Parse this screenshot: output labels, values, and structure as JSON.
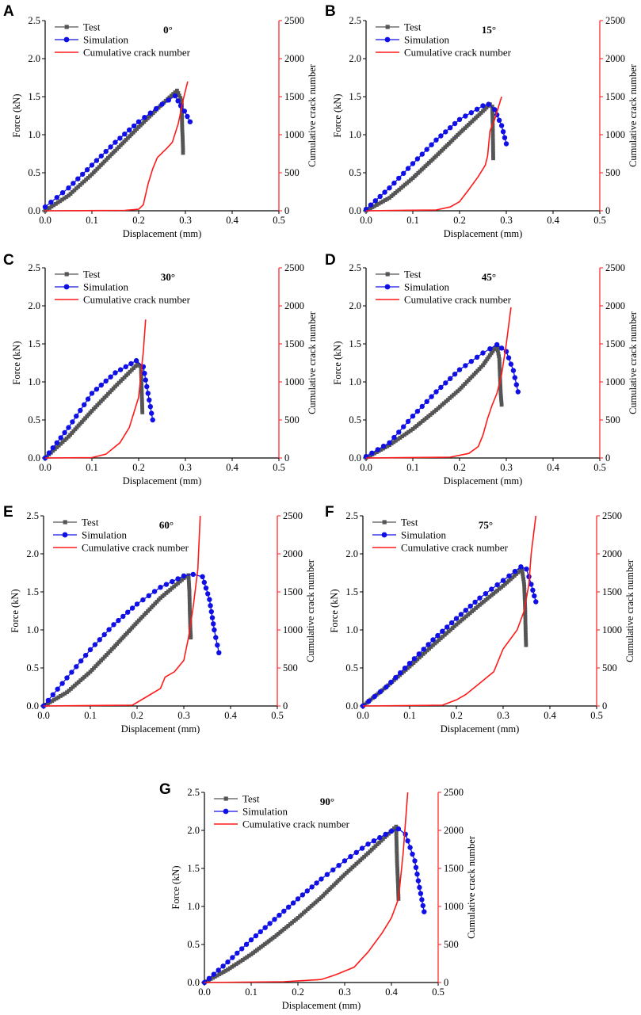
{
  "figure": {
    "colors": {
      "test": "#555555",
      "simulation": "#1010e6",
      "crack": "#ff1a1a",
      "axis": "#000000"
    },
    "legend": [
      "Test",
      "Simulation",
      "Cumulative crack number"
    ],
    "xlabel": "Displacement (mm)",
    "ylabel": "Force (kN)",
    "y2label": "Cumulative crack number",
    "x_ticks": [
      "0.0",
      "0.1",
      "0.2",
      "0.3",
      "0.4",
      "0.5"
    ],
    "y_ticks": [
      "0.0",
      "0.5",
      "1.0",
      "1.5",
      "2.0",
      "2.5"
    ],
    "y2_ticks": [
      "0",
      "500",
      "1000",
      "1500",
      "2000",
      "2500"
    ]
  },
  "chart_data": [
    {
      "type": "line",
      "letter": "A",
      "angle": "0°",
      "xlabel": "Displacement (mm)",
      "ylabel": "Force (kN)",
      "y2label": "Cumulative crack number",
      "xlim": [
        0,
        0.5
      ],
      "ylim": [
        0,
        2.5
      ],
      "y2lim": [
        0,
        2500
      ],
      "series": [
        {
          "name": "Test",
          "axis": "left",
          "x": [
            0,
            0.05,
            0.1,
            0.15,
            0.2,
            0.25,
            0.282,
            0.292,
            0.293,
            0.294,
            0.295
          ],
          "y": [
            0,
            0.2,
            0.48,
            0.79,
            1.1,
            1.4,
            1.58,
            1.45,
            1.1,
            0.97,
            0.76
          ]
        },
        {
          "name": "Simulation",
          "axis": "left",
          "x": [
            0,
            0.05,
            0.1,
            0.15,
            0.2,
            0.25,
            0.278,
            0.29,
            0.298,
            0.31
          ],
          "y": [
            0.05,
            0.3,
            0.6,
            0.9,
            1.17,
            1.4,
            1.51,
            1.38,
            1.31,
            1.17
          ]
        },
        {
          "name": "Cumulative crack number",
          "axis": "right",
          "x": [
            0,
            0.17,
            0.2,
            0.21,
            0.22,
            0.23,
            0.24,
            0.26,
            0.272,
            0.285,
            0.295,
            0.305
          ],
          "y": [
            0,
            5,
            20,
            80,
            350,
            550,
            700,
            820,
            900,
            1150,
            1450,
            1700
          ]
        }
      ]
    },
    {
      "type": "line",
      "letter": "B",
      "angle": "15°",
      "xlabel": "Displacement (mm)",
      "ylabel": "Force (kN)",
      "y2label": "Cumulative crack number",
      "xlim": [
        0,
        0.5
      ],
      "ylim": [
        0,
        2.5
      ],
      "y2lim": [
        0,
        2500
      ],
      "series": [
        {
          "name": "Test",
          "axis": "left",
          "x": [
            0,
            0.05,
            0.1,
            0.15,
            0.2,
            0.25,
            0.265,
            0.27,
            0.271,
            0.272
          ],
          "y": [
            0,
            0.17,
            0.43,
            0.72,
            1.02,
            1.31,
            1.4,
            1.37,
            1.12,
            0.69
          ]
        },
        {
          "name": "Simulation",
          "axis": "left",
          "x": [
            0,
            0.05,
            0.1,
            0.15,
            0.2,
            0.25,
            0.262,
            0.275,
            0.29,
            0.3
          ],
          "y": [
            0.02,
            0.3,
            0.62,
            0.93,
            1.2,
            1.38,
            1.4,
            1.33,
            1.12,
            0.88
          ]
        },
        {
          "name": "Cumulative crack number",
          "axis": "right",
          "x": [
            0,
            0.15,
            0.18,
            0.2,
            0.22,
            0.24,
            0.255,
            0.26,
            0.265,
            0.275,
            0.29
          ],
          "y": [
            0,
            10,
            50,
            120,
            280,
            450,
            600,
            720,
            1050,
            1200,
            1500
          ]
        }
      ]
    },
    {
      "type": "line",
      "letter": "C",
      "angle": "30°",
      "xlabel": "Displacement (mm)",
      "ylabel": "Force (kN)",
      "y2label": "Cumulative crack number",
      "xlim": [
        0,
        0.5
      ],
      "ylim": [
        0,
        2.5
      ],
      "y2lim": [
        0,
        2500
      ],
      "series": [
        {
          "name": "Test",
          "axis": "left",
          "x": [
            0,
            0.05,
            0.1,
            0.15,
            0.197,
            0.205,
            0.206,
            0.207,
            0.208
          ],
          "y": [
            0,
            0.28,
            0.62,
            0.94,
            1.23,
            1.2,
            1.0,
            0.8,
            0.6
          ]
        },
        {
          "name": "Simulation",
          "axis": "left",
          "x": [
            0,
            0.05,
            0.1,
            0.15,
            0.195,
            0.21,
            0.22,
            0.23
          ],
          "y": [
            0,
            0.4,
            0.85,
            1.12,
            1.28,
            1.2,
            0.85,
            0.5
          ]
        },
        {
          "name": "Cumulative crack number",
          "axis": "right",
          "x": [
            0,
            0.1,
            0.13,
            0.16,
            0.18,
            0.19,
            0.2,
            0.205,
            0.21,
            0.215
          ],
          "y": [
            0,
            5,
            50,
            200,
            400,
            600,
            800,
            1100,
            1400,
            1820
          ]
        }
      ]
    },
    {
      "type": "line",
      "letter": "D",
      "angle": "45°",
      "xlabel": "Displacement (mm)",
      "ylabel": "Force (kN)",
      "y2label": "Cumulative crack number",
      "xlim": [
        0,
        0.5
      ],
      "ylim": [
        0,
        2.5
      ],
      "y2lim": [
        0,
        2500
      ],
      "series": [
        {
          "name": "Test",
          "axis": "left",
          "x": [
            0,
            0.05,
            0.1,
            0.15,
            0.2,
            0.25,
            0.28,
            0.285,
            0.287,
            0.288,
            0.29
          ],
          "y": [
            0,
            0.17,
            0.38,
            0.63,
            0.9,
            1.22,
            1.48,
            1.3,
            1.0,
            0.85,
            0.7
          ]
        },
        {
          "name": "Simulation",
          "axis": "left",
          "x": [
            0,
            0.05,
            0.1,
            0.15,
            0.2,
            0.25,
            0.28,
            0.3,
            0.315,
            0.325
          ],
          "y": [
            0.02,
            0.2,
            0.55,
            0.87,
            1.16,
            1.38,
            1.49,
            1.4,
            1.15,
            0.87
          ]
        },
        {
          "name": "Cumulative crack number",
          "axis": "right",
          "x": [
            0,
            0.18,
            0.22,
            0.24,
            0.25,
            0.26,
            0.27,
            0.28,
            0.29,
            0.3,
            0.31
          ],
          "y": [
            0,
            10,
            60,
            150,
            300,
            520,
            700,
            850,
            1100,
            1500,
            1980
          ]
        }
      ]
    },
    {
      "type": "line",
      "letter": "E",
      "angle": "60°",
      "xlabel": "Displacement (mm)",
      "ylabel": "Force (kN)",
      "y2label": "Cumulative crack number",
      "xlim": [
        0,
        0.5
      ],
      "ylim": [
        0,
        2.5
      ],
      "y2lim": [
        0,
        2500
      ],
      "series": [
        {
          "name": "Test",
          "axis": "left",
          "x": [
            0,
            0.05,
            0.1,
            0.15,
            0.2,
            0.25,
            0.3,
            0.31,
            0.312,
            0.313,
            0.314,
            0.315
          ],
          "y": [
            0,
            0.18,
            0.45,
            0.77,
            1.1,
            1.42,
            1.68,
            1.72,
            1.5,
            1.2,
            1.0,
            0.9
          ]
        },
        {
          "name": "Simulation",
          "axis": "left",
          "x": [
            0,
            0.05,
            0.1,
            0.15,
            0.2,
            0.25,
            0.3,
            0.32,
            0.34,
            0.355,
            0.365,
            0.375
          ],
          "y": [
            0,
            0.37,
            0.74,
            1.07,
            1.34,
            1.56,
            1.71,
            1.73,
            1.7,
            1.4,
            1.0,
            0.7
          ]
        },
        {
          "name": "Cumulative crack number",
          "axis": "right",
          "x": [
            0,
            0.19,
            0.22,
            0.25,
            0.26,
            0.28,
            0.3,
            0.31,
            0.32,
            0.33,
            0.335
          ],
          "y": [
            0,
            10,
            120,
            230,
            380,
            450,
            600,
            900,
            1300,
            1800,
            2500
          ]
        }
      ]
    },
    {
      "type": "line",
      "letter": "F",
      "angle": "75°",
      "xlabel": "Displacement (mm)",
      "ylabel": "Force (kN)",
      "y2label": "Cumulative crack number",
      "xlim": [
        0,
        0.5
      ],
      "ylim": [
        0,
        2.5
      ],
      "y2lim": [
        0,
        2500
      ],
      "series": [
        {
          "name": "Test",
          "axis": "left",
          "x": [
            0,
            0.05,
            0.1,
            0.15,
            0.2,
            0.25,
            0.3,
            0.34,
            0.345,
            0.347,
            0.348,
            0.349
          ],
          "y": [
            0,
            0.25,
            0.52,
            0.8,
            1.07,
            1.33,
            1.58,
            1.8,
            1.6,
            1.3,
            1.0,
            0.8
          ]
        },
        {
          "name": "Simulation",
          "axis": "left",
          "x": [
            0,
            0.05,
            0.1,
            0.15,
            0.2,
            0.25,
            0.3,
            0.338,
            0.35,
            0.36,
            0.37
          ],
          "y": [
            0,
            0.25,
            0.56,
            0.87,
            1.15,
            1.42,
            1.65,
            1.83,
            1.8,
            1.6,
            1.37
          ]
        },
        {
          "name": "Cumulative crack number",
          "axis": "right",
          "x": [
            0,
            0.17,
            0.2,
            0.22,
            0.25,
            0.28,
            0.3,
            0.33,
            0.345,
            0.355,
            0.36,
            0.37
          ],
          "y": [
            0,
            10,
            80,
            150,
            300,
            450,
            750,
            1000,
            1250,
            1600,
            2000,
            2500
          ]
        }
      ]
    },
    {
      "type": "line",
      "letter": "G",
      "angle": "90°",
      "xlabel": "Displacement (mm)",
      "ylabel": "Force (kN)",
      "y2label": "Cumulative crack number",
      "xlim": [
        0,
        0.5
      ],
      "ylim": [
        0,
        2.5
      ],
      "y2lim": [
        0,
        2500
      ],
      "series": [
        {
          "name": "Test",
          "axis": "left",
          "x": [
            0,
            0.05,
            0.1,
            0.15,
            0.2,
            0.25,
            0.3,
            0.35,
            0.41,
            0.412,
            0.414,
            0.415
          ],
          "y": [
            0,
            0.17,
            0.37,
            0.6,
            0.85,
            1.12,
            1.42,
            1.7,
            2.05,
            1.6,
            1.3,
            1.1
          ]
        },
        {
          "name": "Simulation",
          "axis": "left",
          "x": [
            0,
            0.05,
            0.1,
            0.15,
            0.2,
            0.25,
            0.3,
            0.35,
            0.4,
            0.415,
            0.43,
            0.45,
            0.46,
            0.47
          ],
          "y": [
            0,
            0.27,
            0.56,
            0.83,
            1.1,
            1.36,
            1.6,
            1.82,
            1.99,
            2.02,
            1.95,
            1.6,
            1.25,
            0.93
          ]
        },
        {
          "name": "Cumulative crack number",
          "axis": "right",
          "x": [
            0,
            0.17,
            0.25,
            0.28,
            0.32,
            0.35,
            0.38,
            0.4,
            0.415,
            0.425,
            0.435
          ],
          "y": [
            0,
            10,
            40,
            100,
            200,
            400,
            650,
            850,
            1100,
            1700,
            2500
          ]
        }
      ]
    }
  ]
}
